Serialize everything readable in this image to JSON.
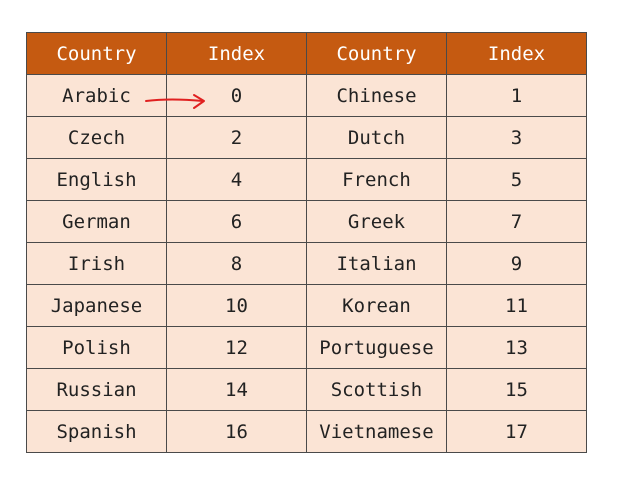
{
  "table": {
    "headers": [
      "Country",
      "Index",
      "Country",
      "Index"
    ],
    "rows": [
      [
        "Arabic",
        "0",
        "Chinese",
        "1"
      ],
      [
        "Czech",
        "2",
        "Dutch",
        "3"
      ],
      [
        "English",
        "4",
        "French",
        "5"
      ],
      [
        "German",
        "6",
        "Greek",
        "7"
      ],
      [
        "Irish",
        "8",
        "Italian",
        "9"
      ],
      [
        "Japanese",
        "10",
        "Korean",
        "11"
      ],
      [
        "Polish",
        "12",
        "Portuguese",
        "13"
      ],
      [
        "Russian",
        "14",
        "Scottish",
        "15"
      ],
      [
        "Spanish",
        "16",
        "Vietnamese",
        "17"
      ]
    ]
  },
  "colors": {
    "header_bg": "#c55a11",
    "header_text": "#ffffff",
    "cell_bg": "#fbe4d5",
    "border": "#4a4a4a",
    "annotation_arrow": "#e02020"
  },
  "annotation": {
    "icon": "red-arrow-icon"
  }
}
